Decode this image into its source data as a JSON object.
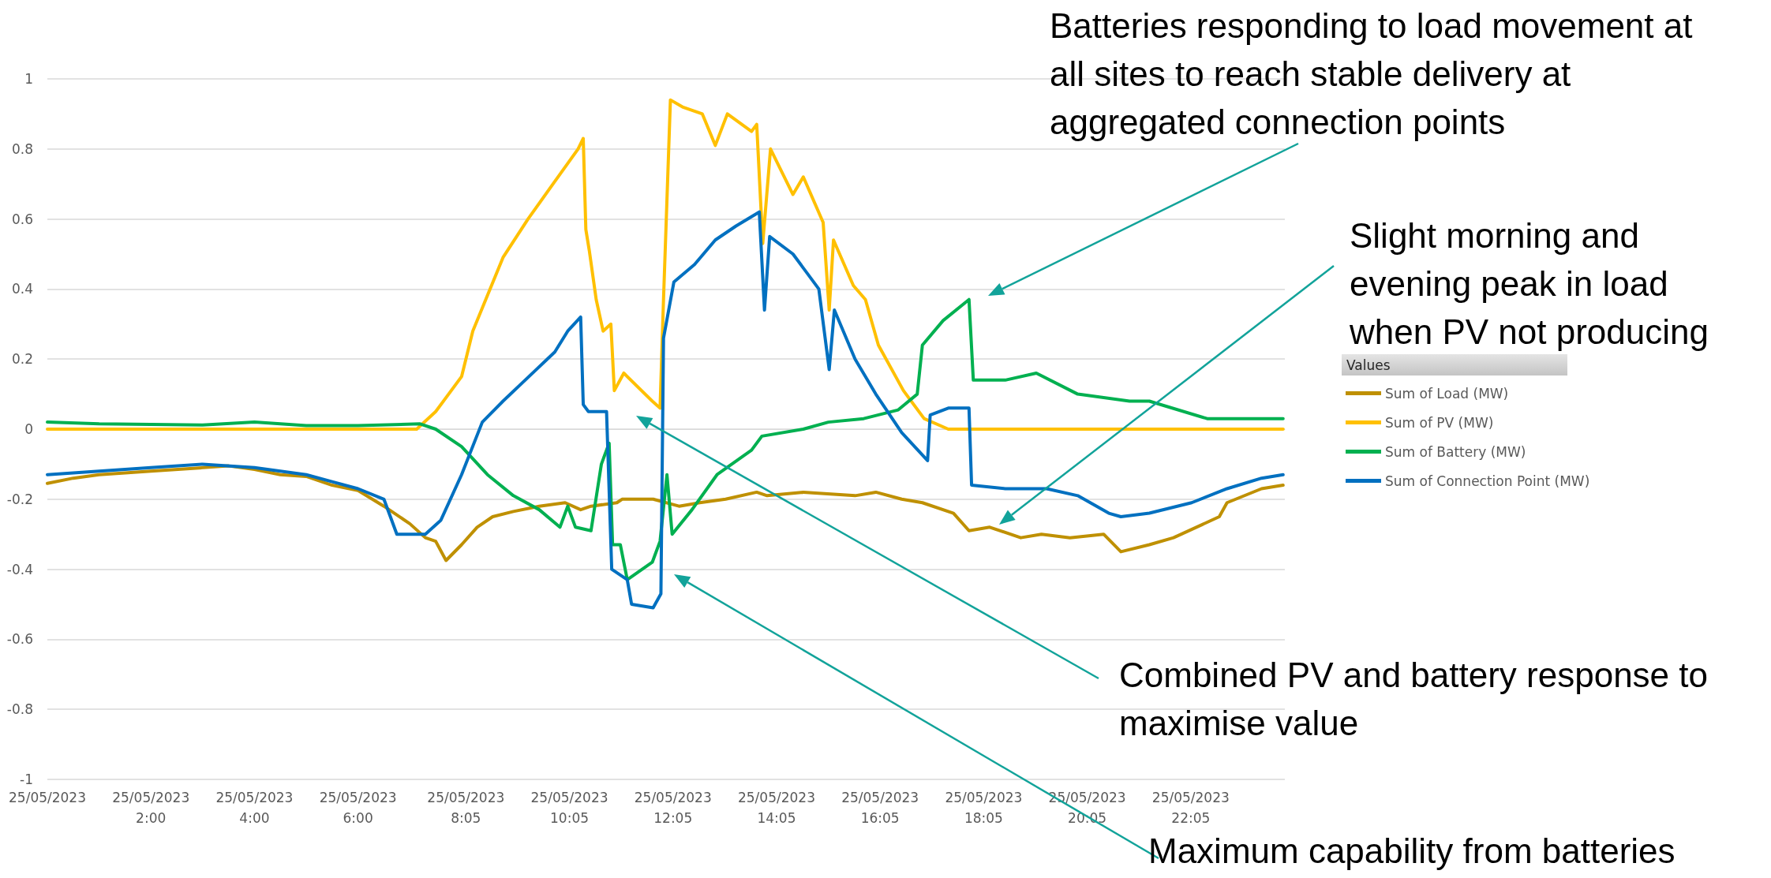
{
  "chart_data": {
    "type": "line",
    "legend_title": "Values",
    "legend": "right",
    "grid": "y",
    "marker": "none",
    "line_style": "solid",
    "xlim": [
      "2023-05-25T00:00",
      "2023-05-25T23:54"
    ],
    "ylim": [
      -1,
      1
    ],
    "xticks": [
      {
        "value": "2023-05-25T00:00",
        "label": "25/05/2023"
      },
      {
        "value": "2023-05-25T02:00",
        "label": "25/05/2023 2:00"
      },
      {
        "value": "2023-05-25T04:00",
        "label": "25/05/2023 4:00"
      },
      {
        "value": "2023-05-25T06:00",
        "label": "25/05/2023 6:00"
      },
      {
        "value": "2023-05-25T08:05",
        "label": "25/05/2023 8:05"
      },
      {
        "value": "2023-05-25T10:05",
        "label": "25/05/2023 10:05"
      },
      {
        "value": "2023-05-25T12:05",
        "label": "25/05/2023 12:05"
      },
      {
        "value": "2023-05-25T14:05",
        "label": "25/05/2023 14:05"
      },
      {
        "value": "2023-05-25T16:05",
        "label": "25/05/2023 16:05"
      },
      {
        "value": "2023-05-25T18:05",
        "label": "25/05/2023 18:05"
      },
      {
        "value": "2023-05-25T20:05",
        "label": "25/05/2023 20:05"
      },
      {
        "value": "2023-05-25T22:05",
        "label": "25/05/2023 22:05"
      }
    ],
    "yticks": [
      -1,
      -0.8,
      -0.6,
      -0.4,
      -0.2,
      0,
      0.2,
      0.4,
      0.6,
      0.8,
      1
    ],
    "series": [
      {
        "name": "Sum of Load (MW)",
        "color": "#bf9000",
        "x": [
          "2023-05-25T00:00",
          "2023-05-25T00:30",
          "2023-05-25T01:00",
          "2023-05-25T02:00",
          "2023-05-25T03:00",
          "2023-05-25T03:30",
          "2023-05-25T04:00",
          "2023-05-25T04:30",
          "2023-05-25T05:00",
          "2023-05-25T05:30",
          "2023-05-25T06:00",
          "2023-05-25T06:30",
          "2023-05-25T07:00",
          "2023-05-25T07:18",
          "2023-05-25T07:30",
          "2023-05-25T07:42",
          "2023-05-25T08:00",
          "2023-05-25T08:18",
          "2023-05-25T08:36",
          "2023-05-25T09:00",
          "2023-05-25T09:30",
          "2023-05-25T10:00",
          "2023-05-25T10:18",
          "2023-05-25T10:30",
          "2023-05-25T11:00",
          "2023-05-25T11:06",
          "2023-05-25T11:42",
          "2023-05-25T12:12",
          "2023-05-25T12:36",
          "2023-05-25T13:06",
          "2023-05-25T13:42",
          "2023-05-25T13:54",
          "2023-05-25T14:36",
          "2023-05-25T15:36",
          "2023-05-25T16:00",
          "2023-05-25T16:30",
          "2023-05-25T16:54",
          "2023-05-25T17:30",
          "2023-05-25T17:48",
          "2023-05-25T18:12",
          "2023-05-25T18:48",
          "2023-05-25T19:12",
          "2023-05-25T19:45",
          "2023-05-25T20:24",
          "2023-05-25T20:44",
          "2023-05-25T21:17",
          "2023-05-25T21:45",
          "2023-05-25T22:38",
          "2023-05-25T22:47",
          "2023-05-25T23:27",
          "2023-05-25T23:52"
        ],
        "values": [
          -0.155,
          -0.14,
          -0.13,
          -0.12,
          -0.11,
          -0.105,
          -0.115,
          -0.13,
          -0.135,
          -0.16,
          -0.175,
          -0.22,
          -0.27,
          -0.31,
          -0.32,
          -0.375,
          -0.33,
          -0.28,
          -0.25,
          -0.235,
          -0.22,
          -0.21,
          -0.23,
          -0.22,
          -0.21,
          -0.2,
          -0.2,
          -0.22,
          -0.21,
          -0.2,
          -0.18,
          -0.19,
          -0.18,
          -0.19,
          -0.18,
          -0.2,
          -0.21,
          -0.24,
          -0.29,
          -0.28,
          -0.31,
          -0.3,
          -0.31,
          -0.3,
          -0.35,
          -0.33,
          -0.31,
          -0.25,
          -0.21,
          -0.17,
          -0.16
        ]
      },
      {
        "name": "Sum of PV (MW)",
        "color": "#ffc000",
        "x": [
          "2023-05-25T00:00",
          "2023-05-25T07:08",
          "2023-05-25T07:30",
          "2023-05-25T08:00",
          "2023-05-25T08:13",
          "2023-05-25T08:48",
          "2023-05-25T09:17",
          "2023-05-25T09:46",
          "2023-05-25T10:15",
          "2023-05-25T10:21",
          "2023-05-25T10:24",
          "2023-05-25T10:28",
          "2023-05-25T10:36",
          "2023-05-25T10:44",
          "2023-05-25T10:53",
          "2023-05-25T10:57",
          "2023-05-25T11:08",
          "2023-05-25T11:12",
          "2023-05-25T11:41",
          "2023-05-25T11:50",
          "2023-05-25T11:54",
          "2023-05-25T12:02",
          "2023-05-25T12:16",
          "2023-05-25T12:39",
          "2023-05-25T12:54",
          "2023-05-25T13:08",
          "2023-05-25T13:36",
          "2023-05-25T13:42",
          "2023-05-25T13:49",
          "2023-05-25T13:58",
          "2023-05-25T14:24",
          "2023-05-25T14:36",
          "2023-05-25T14:59",
          "2023-05-25T15:06",
          "2023-05-25T15:11",
          "2023-05-25T15:34",
          "2023-05-25T15:48",
          "2023-05-25T16:03",
          "2023-05-25T16:32",
          "2023-05-25T16:56",
          "2023-05-25T17:24",
          "2023-05-25T23:52"
        ],
        "values": [
          0,
          0,
          0.05,
          0.15,
          0.28,
          0.49,
          0.6,
          0.7,
          0.8,
          0.83,
          0.57,
          0.51,
          0.37,
          0.28,
          0.3,
          0.11,
          0.16,
          0.15,
          0.08,
          0.06,
          0.37,
          0.94,
          0.92,
          0.9,
          0.81,
          0.9,
          0.85,
          0.87,
          0.53,
          0.8,
          0.67,
          0.72,
          0.59,
          0.34,
          0.54,
          0.41,
          0.37,
          0.24,
          0.11,
          0.03,
          0,
          0
        ]
      },
      {
        "name": "Sum of Battery (MW)",
        "color": "#00b050",
        "x": [
          "2023-05-25T00:00",
          "2023-05-25T01:00",
          "2023-05-25T03:00",
          "2023-05-25T04:00",
          "2023-05-25T05:00",
          "2023-05-25T06:00",
          "2023-05-25T07:12",
          "2023-05-25T07:30",
          "2023-05-25T08:00",
          "2023-05-25T08:30",
          "2023-05-25T09:00",
          "2023-05-25T09:30",
          "2023-05-25T09:54",
          "2023-05-25T10:03",
          "2023-05-25T10:12",
          "2023-05-25T10:30",
          "2023-05-25T10:42",
          "2023-05-25T10:51",
          "2023-05-25T10:55",
          "2023-05-25T11:04",
          "2023-05-25T11:12",
          "2023-05-25T11:41",
          "2023-05-25T11:50",
          "2023-05-25T11:58",
          "2023-05-25T12:04",
          "2023-05-25T12:27",
          "2023-05-25T12:56",
          "2023-05-25T13:36",
          "2023-05-25T13:48",
          "2023-05-25T14:36",
          "2023-05-25T15:05",
          "2023-05-25T15:46",
          "2023-05-25T16:26",
          "2023-05-25T16:48",
          "2023-05-25T16:54",
          "2023-05-25T17:18",
          "2023-05-25T17:48",
          "2023-05-25T17:53",
          "2023-05-25T18:30",
          "2023-05-25T19:06",
          "2023-05-25T19:54",
          "2023-05-25T20:54",
          "2023-05-25T21:17",
          "2023-05-25T22:24",
          "2023-05-25T23:52"
        ],
        "values": [
          0.02,
          0.015,
          0.012,
          0.02,
          0.01,
          0.01,
          0.015,
          0,
          -0.05,
          -0.13,
          -0.19,
          -0.23,
          -0.28,
          -0.22,
          -0.28,
          -0.29,
          -0.1,
          -0.04,
          -0.33,
          -0.33,
          -0.43,
          -0.38,
          -0.32,
          -0.13,
          -0.3,
          -0.23,
          -0.13,
          -0.06,
          -0.02,
          0,
          0.02,
          0.03,
          0.055,
          0.1,
          0.24,
          0.31,
          0.37,
          0.14,
          0.14,
          0.16,
          0.1,
          0.08,
          0.08,
          0.03,
          0.03
        ]
      },
      {
        "name": "Sum of Connection Point (MW)",
        "color": "#0070c0",
        "x": [
          "2023-05-25T00:00",
          "2023-05-25T01:00",
          "2023-05-25T02:00",
          "2023-05-25T03:00",
          "2023-05-25T04:00",
          "2023-05-25T05:00",
          "2023-05-25T05:30",
          "2023-05-25T06:00",
          "2023-05-25T06:30",
          "2023-05-25T06:45",
          "2023-05-25T07:18",
          "2023-05-25T07:36",
          "2023-05-25T08:00",
          "2023-05-25T08:24",
          "2023-05-25T08:48",
          "2023-05-25T09:18",
          "2023-05-25T09:48",
          "2023-05-25T10:03",
          "2023-05-25T10:18",
          "2023-05-25T10:21",
          "2023-05-25T10:27",
          "2023-05-25T10:48",
          "2023-05-25T10:54",
          "2023-05-25T11:12",
          "2023-05-25T11:17",
          "2023-05-25T11:42",
          "2023-05-25T11:51",
          "2023-05-25T11:54",
          "2023-05-25T12:06",
          "2023-05-25T12:30",
          "2023-05-25T12:54",
          "2023-05-25T13:18",
          "2023-05-25T13:45",
          "2023-05-25T13:51",
          "2023-05-25T13:57",
          "2023-05-25T14:24",
          "2023-05-25T14:54",
          "2023-05-25T15:06",
          "2023-05-25T15:12",
          "2023-05-25T15:36",
          "2023-05-25T16:00",
          "2023-05-25T16:30",
          "2023-05-25T17:00",
          "2023-05-25T17:03",
          "2023-05-25T17:24",
          "2023-05-25T17:48",
          "2023-05-25T17:51",
          "2023-05-25T18:30",
          "2023-05-25T19:18",
          "2023-05-25T19:54",
          "2023-05-25T20:30",
          "2023-05-25T20:44",
          "2023-05-25T21:17",
          "2023-05-25T22:06",
          "2023-05-25T22:47",
          "2023-05-25T23:27",
          "2023-05-25T23:52"
        ],
        "values": [
          -0.13,
          -0.12,
          -0.11,
          -0.1,
          -0.11,
          -0.13,
          -0.15,
          -0.17,
          -0.2,
          -0.3,
          -0.3,
          -0.26,
          -0.13,
          0.02,
          0.08,
          0.15,
          0.22,
          0.28,
          0.32,
          0.07,
          0.05,
          0.05,
          -0.4,
          -0.43,
          -0.5,
          -0.51,
          -0.47,
          0.26,
          0.42,
          0.47,
          0.54,
          0.58,
          0.62,
          0.34,
          0.55,
          0.5,
          0.4,
          0.17,
          0.34,
          0.2,
          0.1,
          -0.01,
          -0.09,
          0.04,
          0.06,
          0.06,
          -0.16,
          -0.17,
          -0.17,
          -0.19,
          -0.24,
          -0.25,
          -0.24,
          -0.21,
          -0.17,
          -0.14,
          -0.13
        ]
      }
    ],
    "annotations": [
      "Batteries responding to load movement at all sites to reach stable delivery at aggregated connection points",
      "Slight morning and evening peak in load when PV not producing",
      "Combined PV and battery response to maximise value",
      "Maximum capability from batteries"
    ]
  }
}
